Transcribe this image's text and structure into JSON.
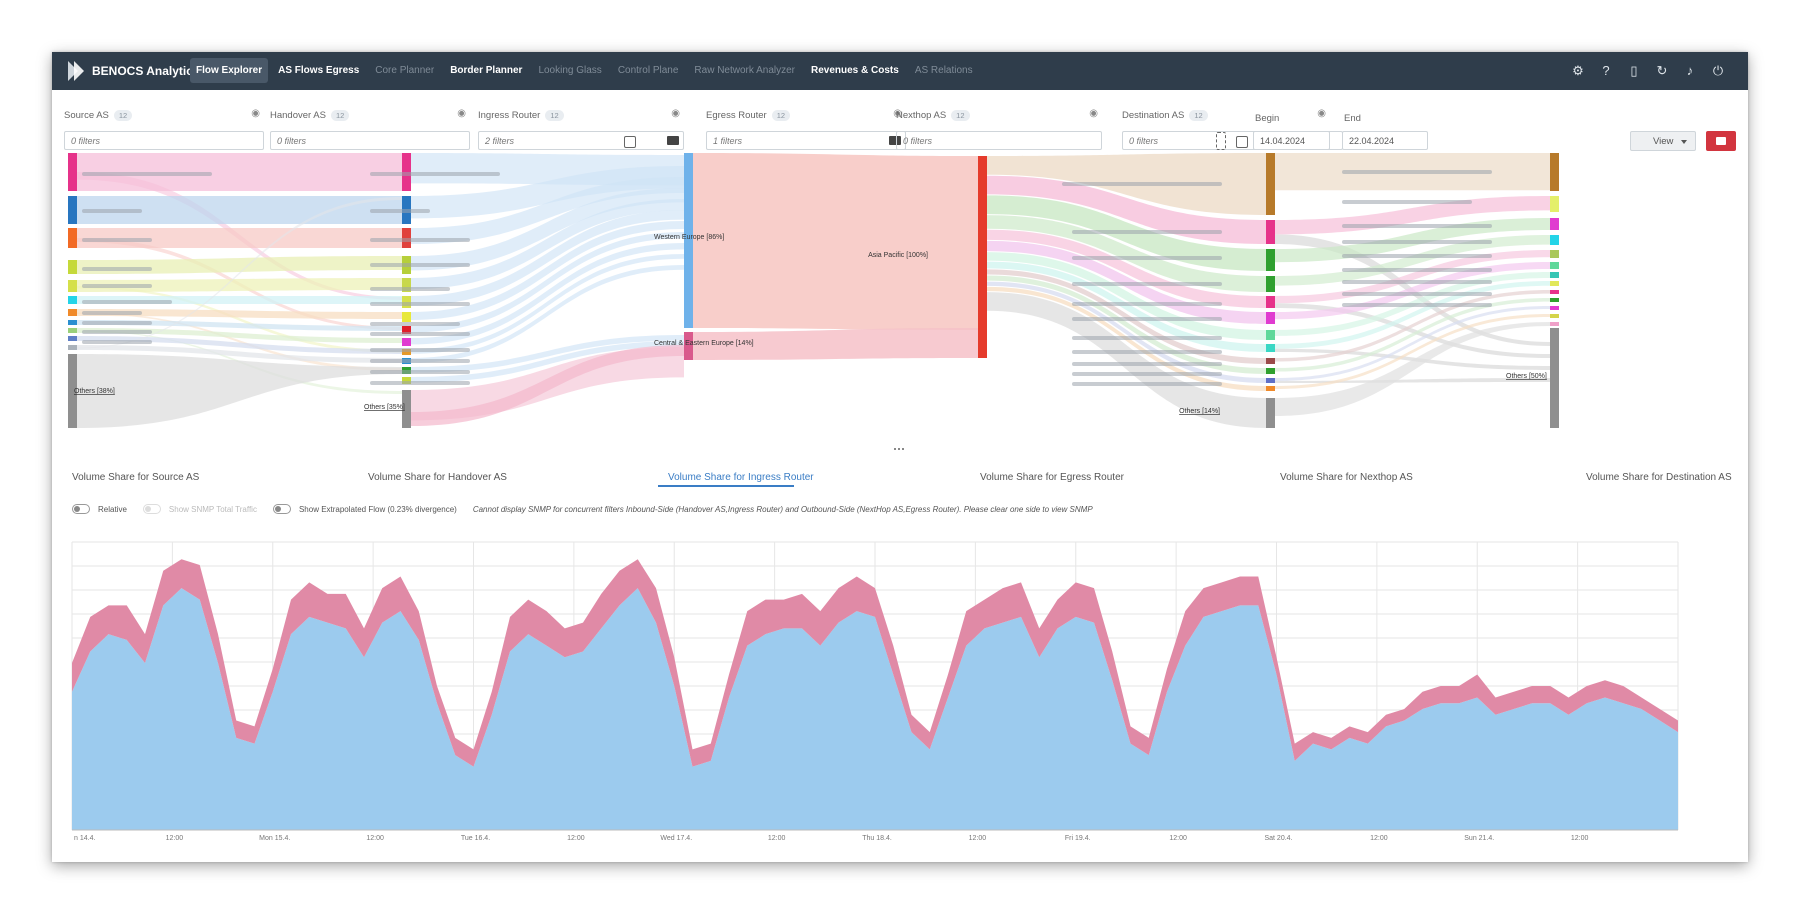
{
  "nav": {
    "brand": "BENOCS Analytics",
    "items": [
      {
        "label": "Flow Explorer",
        "state": "active"
      },
      {
        "label": "AS Flows Egress",
        "state": "bold"
      },
      {
        "label": "Core Planner",
        "state": "dim"
      },
      {
        "label": "Border Planner",
        "state": "bold"
      },
      {
        "label": "Looking Glass",
        "state": "dim"
      },
      {
        "label": "Control Plane",
        "state": "dim"
      },
      {
        "label": "Raw Network Analyzer",
        "state": "dim"
      },
      {
        "label": "Revenues & Costs",
        "state": "bold"
      },
      {
        "label": "AS Relations",
        "state": "dim"
      }
    ],
    "icons": [
      "settings-icon",
      "help-icon",
      "book-icon",
      "history-icon",
      "bell-icon",
      "power-icon"
    ]
  },
  "filters": [
    {
      "label": "Source AS",
      "badge": "12",
      "value": "0 filters"
    },
    {
      "label": "Handover AS",
      "badge": "12",
      "value": "0 filters"
    },
    {
      "label": "Ingress Router",
      "badge": "12",
      "value": "2 filters"
    },
    {
      "label": "Egress Router",
      "badge": "12",
      "value": "1 filters"
    },
    {
      "label": "Nexthop AS",
      "badge": "12",
      "value": "0 filters"
    },
    {
      "label": "Destination AS",
      "badge": "12",
      "value": "0 filters"
    }
  ],
  "dates": {
    "begin_label": "Begin",
    "begin": "14.04.2024",
    "end_label": "End",
    "end": "22.04.2024"
  },
  "view_button": "View",
  "sankey": {
    "others_source": "Others [38%]",
    "others_handover": "Others [35%]",
    "western_europe": "Western Europe [86%]",
    "central_eastern_europe": "Central & Eastern Europe [14%]",
    "asia_pacific": "Asia Pacific [100%]",
    "others_nexthop": "Others [14%]",
    "others_destination": "Others [50%]"
  },
  "tabs": [
    "Volume Share for Source AS",
    "Volume Share for Handover AS",
    "Volume Share for Ingress Router",
    "Volume Share for Egress Router",
    "Volume Share for Nexthop AS",
    "Volume Share for Destination AS"
  ],
  "active_tab": 2,
  "toggles": {
    "relative": "Relative",
    "snmp": "Show SNMP Total Traffic",
    "extrapolated": "Show Extrapolated Flow (0.23% divergence)",
    "note": "Cannot display SNMP for concurrent filters Inbound-Side (Handover AS,Ingress Router) and Outbound-Side (NextHop AS,Egress Router). Please clear one side to view SNMP"
  },
  "chart_data": {
    "type": "area",
    "stacked": true,
    "x_ticks": [
      "n 14.4.",
      "12:00",
      "Mon 15.4.",
      "12:00",
      "Tue 16.4.",
      "12:00",
      "Wed 17.4.",
      "12:00",
      "Thu 18.4.",
      "12:00",
      "Fri 19.4.",
      "12:00",
      "Sat 20.4.",
      "12:00",
      "Sun 21.4.",
      "12:00"
    ],
    "grid": true,
    "series": [
      {
        "color": "#9ccbee",
        "values": [
          48,
          62,
          68,
          66,
          58,
          78,
          84,
          80,
          58,
          32,
          30,
          48,
          68,
          74,
          72,
          70,
          60,
          72,
          76,
          66,
          44,
          26,
          22,
          40,
          62,
          68,
          64,
          60,
          62,
          70,
          78,
          84,
          72,
          50,
          22,
          24,
          46,
          64,
          68,
          70,
          70,
          64,
          72,
          76,
          74,
          54,
          34,
          28,
          46,
          64,
          70,
          72,
          74,
          60,
          70,
          74,
          72,
          52,
          30,
          26,
          48,
          64,
          74,
          76,
          78,
          78,
          54,
          24,
          30,
          28,
          32,
          30,
          36,
          38,
          42,
          44,
          44,
          46,
          40,
          42,
          44,
          44,
          40,
          44,
          46,
          44,
          42,
          38,
          34
        ]
      },
      {
        "color": "#e08aa6",
        "values": [
          10,
          12,
          10,
          12,
          10,
          12,
          10,
          12,
          10,
          6,
          6,
          8,
          12,
          12,
          10,
          12,
          10,
          12,
          12,
          10,
          6,
          6,
          6,
          8,
          12,
          12,
          12,
          10,
          10,
          12,
          12,
          10,
          12,
          10,
          6,
          6,
          8,
          12,
          12,
          10,
          12,
          12,
          12,
          12,
          10,
          10,
          6,
          6,
          8,
          12,
          10,
          12,
          12,
          10,
          10,
          12,
          12,
          10,
          6,
          6,
          8,
          12,
          10,
          10,
          10,
          10,
          6,
          6,
          4,
          4,
          4,
          4,
          4,
          4,
          6,
          6,
          6,
          8,
          6,
          6,
          6,
          6,
          6,
          6,
          6,
          6,
          4,
          4,
          4
        ]
      }
    ]
  }
}
